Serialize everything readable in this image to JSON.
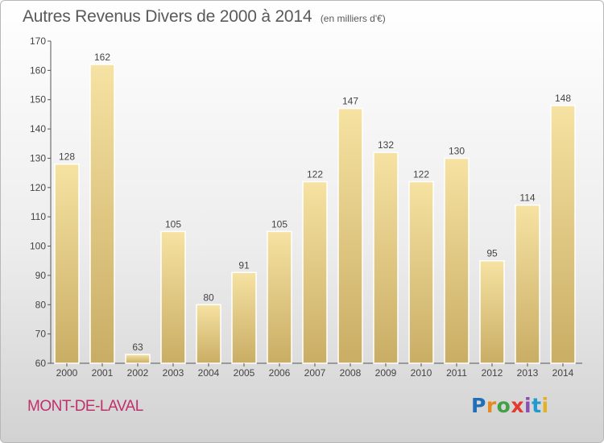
{
  "header": {
    "title": "Autres Revenus Divers de 2000 à 2014",
    "subtitle": "(en milliers d'€)"
  },
  "footer": {
    "commune": "MONT-DE-LAVAL",
    "logo_letters": [
      "P",
      "r",
      "o",
      "x",
      "i",
      "t",
      "i"
    ]
  },
  "colors": {
    "bar_light": "#f6e2a2",
    "bar_dark": "#c9ad64",
    "commune_text": "#c0306a"
  },
  "chart_data": {
    "type": "bar",
    "categories": [
      "2000",
      "2001",
      "2002",
      "2003",
      "2004",
      "2005",
      "2006",
      "2007",
      "2008",
      "2009",
      "2010",
      "2011",
      "2012",
      "2013",
      "2014"
    ],
    "values": [
      128,
      162,
      63,
      105,
      80,
      91,
      105,
      122,
      147,
      132,
      122,
      130,
      95,
      114,
      148
    ],
    "ylim": [
      60,
      170
    ],
    "yticks": [
      60,
      70,
      80,
      90,
      100,
      110,
      120,
      130,
      140,
      150,
      160,
      170
    ],
    "grid": false,
    "data_labels": true
  }
}
